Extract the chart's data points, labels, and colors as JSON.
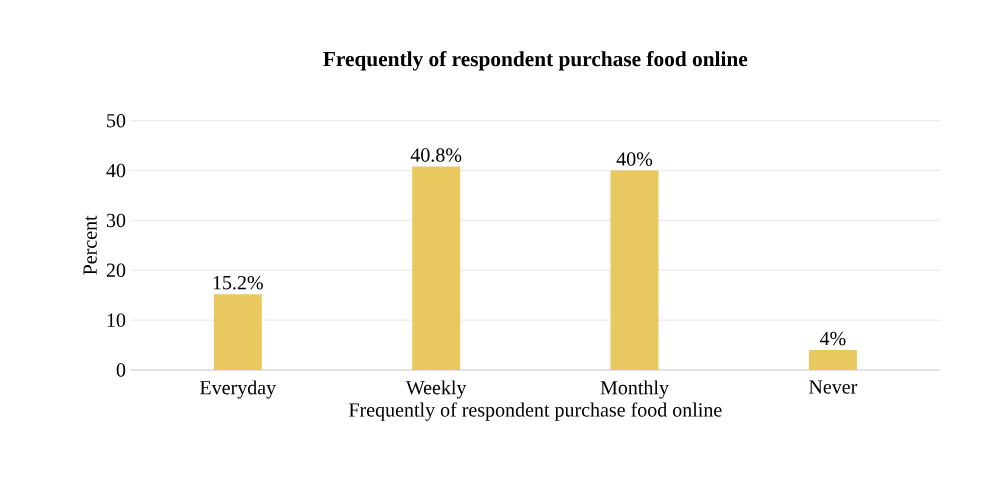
{
  "chart_data": {
    "type": "bar",
    "title": "Frequently of respondent purchase food online",
    "xlabel": "Frequently of respondent purchase food online",
    "ylabel": "Percent",
    "categories": [
      "Everyday",
      "Weekly",
      "Monthly",
      "Never"
    ],
    "values": [
      15.2,
      40.8,
      40,
      4
    ],
    "value_labels": [
      "15.2%",
      "40.8%",
      "40%",
      "4%"
    ],
    "color": "#e9c860",
    "ylim": [
      0,
      50
    ],
    "yticks": [
      0,
      10,
      20,
      30,
      40,
      50
    ],
    "grid": "y"
  }
}
